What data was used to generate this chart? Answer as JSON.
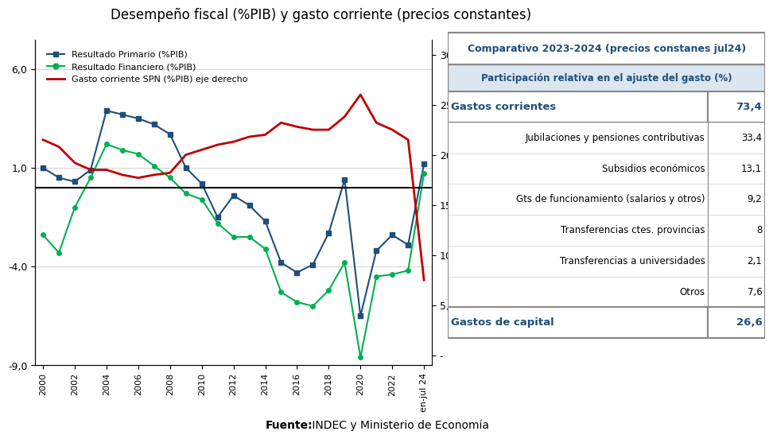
{
  "title": "Desempeño fiscal (%PIB) y gasto corriente (precios constantes)",
  "source_bold": "Fuente:",
  "source_rest": " INDEC y Ministerio de Economía",
  "years_primary": [
    2000,
    2001,
    2002,
    2003,
    2004,
    2005,
    2006,
    2007,
    2008,
    2009,
    2010,
    2011,
    2012,
    2013,
    2014,
    2015,
    2016,
    2017,
    2018,
    2019,
    2020,
    2021,
    2022,
    2023,
    2024
  ],
  "resultado_primario": [
    1.0,
    0.5,
    0.3,
    0.9,
    3.9,
    3.7,
    3.5,
    3.2,
    2.7,
    1.0,
    0.2,
    -1.5,
    -0.4,
    -0.9,
    -1.7,
    -3.8,
    -4.3,
    -3.9,
    -2.3,
    0.4,
    -6.5,
    -3.2,
    -2.4,
    -2.9,
    1.2
  ],
  "resultado_financiero": [
    -2.4,
    -3.3,
    -1.0,
    0.5,
    2.2,
    1.9,
    1.7,
    1.1,
    0.5,
    -0.3,
    -0.6,
    -1.8,
    -2.5,
    -2.5,
    -3.1,
    -5.3,
    -5.8,
    -6.0,
    -5.2,
    -3.8,
    -8.6,
    -4.5,
    -4.4,
    -4.2,
    0.7
  ],
  "years_gasto": [
    2000,
    2001,
    2002,
    2003,
    2004,
    2005,
    2006,
    2007,
    2008,
    2009,
    2010,
    2011,
    2012,
    2013,
    2014,
    2015,
    2016,
    2017,
    2018,
    2019,
    2020,
    2021,
    2022,
    2023,
    2024
  ],
  "gasto_corriente": [
    21.5,
    20.8,
    19.2,
    18.5,
    18.5,
    18.0,
    17.7,
    18.0,
    18.2,
    20.0,
    20.5,
    21.0,
    21.3,
    21.8,
    22.0,
    23.2,
    22.8,
    22.5,
    22.5,
    23.8,
    26.0,
    23.2,
    22.5,
    21.5,
    7.5
  ],
  "ylim_left": [
    -9.0,
    7.5
  ],
  "ylim_right": [
    -1.0,
    31.5
  ],
  "yticks_left": [
    -9.0,
    -4.0,
    1.0,
    6.0
  ],
  "yticks_right": [
    0.0,
    5.0,
    10.0,
    15.0,
    20.0,
    25.0,
    30.0
  ],
  "ytick_labels_left": [
    "-9,0",
    "-4,0",
    "1,0",
    "6,0"
  ],
  "ytick_labels_right": [
    "-",
    "5,0",
    "10,0",
    "15,0",
    "20,0",
    "25,0",
    "30,0"
  ],
  "color_primario": "#1f4e79",
  "color_financiero": "#00b050",
  "color_gasto": "#c00000",
  "xtick_years": [
    2000,
    2002,
    2004,
    2006,
    2008,
    2010,
    2012,
    2014,
    2016,
    2018,
    2020,
    2022,
    2024
  ],
  "xtick_labels": [
    "2000",
    "2002",
    "2004",
    "2006",
    "2008",
    "2010",
    "2012",
    "2014",
    "2016",
    "2018",
    "2020",
    "2022",
    "en-jul 24"
  ],
  "table_header1": "Comparativo 2023-2024 (precios constanes jul24)",
  "table_header2": "Participación relativa en el ajuste del gasto (%)",
  "table_rows": [
    [
      "Gastos corrientes",
      "73,4",
      true
    ],
    [
      "Jubilaciones y pensiones contributivas",
      "33,4",
      false
    ],
    [
      "Subsidios económicos",
      "13,1",
      false
    ],
    [
      "Gts de funcionamiento (salarios y otros)",
      "9,2",
      false
    ],
    [
      "Transferencias ctes. provincias",
      "8",
      false
    ],
    [
      "Transferencias a universidades",
      "2,1",
      false
    ],
    [
      "Otros",
      "7,6",
      false
    ],
    [
      "Gastos de capital",
      "26,6",
      true
    ]
  ],
  "legend_label1": "Resultado Primario (%PIB)",
  "legend_label2": "Resultado Financiero (%PIB)",
  "legend_label3": "Gasto corriente SPN (%PIB) eje derecho",
  "blue_dark": "#1f4e79",
  "blue_light_bg": "#dce6f1",
  "gray_border": "#888888",
  "gray_light": "#d9d9d9"
}
